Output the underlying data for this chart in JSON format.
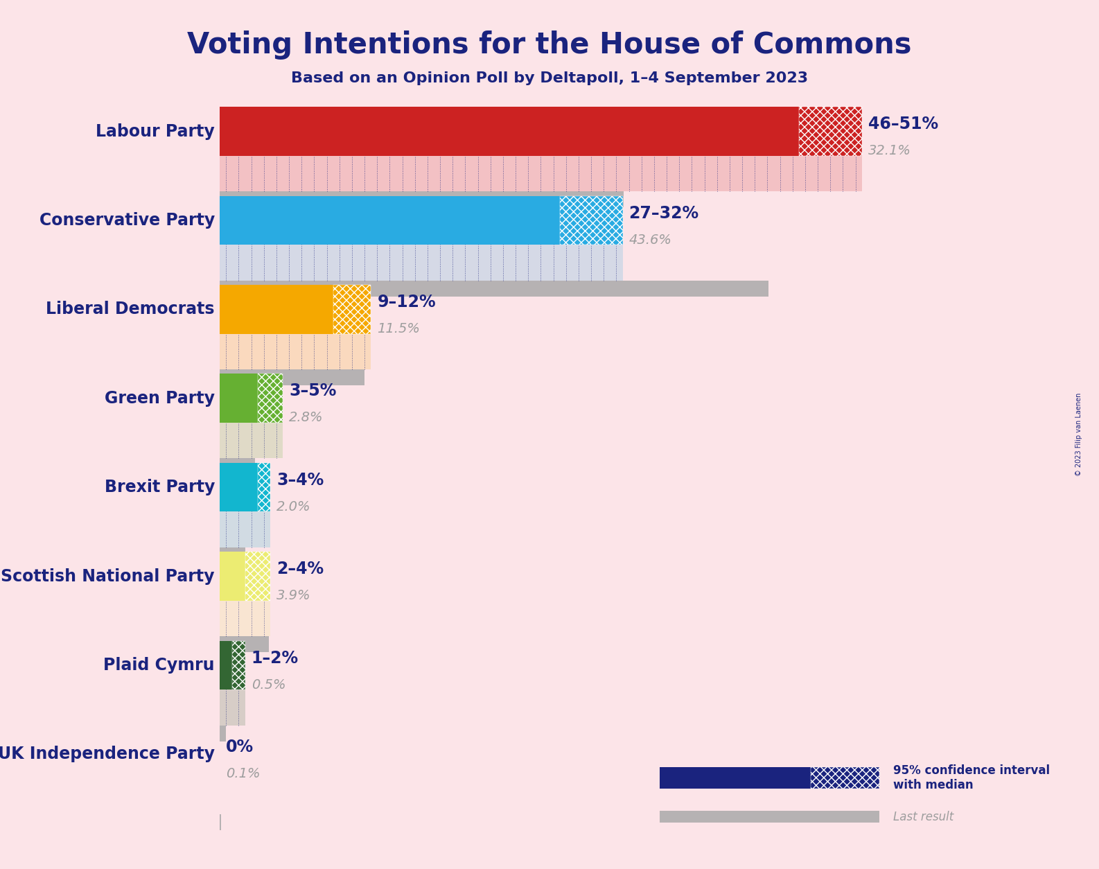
{
  "title": "Voting Intentions for the House of Commons",
  "subtitle": "Based on an Opinion Poll by Deltapoll, 1–4 September 2023",
  "copyright": "© 2023 Filip van Laenen",
  "background_color": "#fce4e8",
  "parties": [
    "Labour Party",
    "Conservative Party",
    "Liberal Democrats",
    "Green Party",
    "Brexit Party",
    "Scottish National Party",
    "Plaid Cymru",
    "UK Independence Party"
  ],
  "ci_low": [
    46,
    27,
    9,
    3,
    3,
    2,
    1,
    0
  ],
  "ci_high": [
    51,
    32,
    12,
    5,
    4,
    4,
    2,
    0
  ],
  "last_result": [
    32.1,
    43.6,
    11.5,
    2.8,
    2.0,
    3.9,
    0.5,
    0.1
  ],
  "ci_labels": [
    "46–51%",
    "27–32%",
    "9–12%",
    "3–5%",
    "3–4%",
    "2–4%",
    "1–2%",
    "0%"
  ],
  "colors": [
    "#cc2222",
    "#29abe2",
    "#f5a800",
    "#66b032",
    "#12b6cf",
    "#ecec72",
    "#336633",
    "#7b2d8b"
  ],
  "label_color": "#1a237e",
  "last_result_color": "#9e9e9e",
  "title_color": "#1a237e",
  "subtitle_color": "#1a237e",
  "xmax": 55,
  "legend_ci_color": "#1a237e",
  "legend_last_color": "#9e9e9e"
}
